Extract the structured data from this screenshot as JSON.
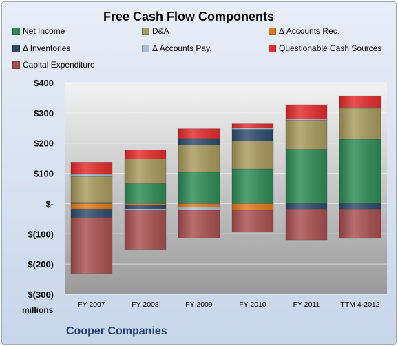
{
  "chart_data": {
    "type": "bar",
    "stacked": true,
    "title": "Free Cash Flow Components",
    "units_label": "millions",
    "company": "Cooper Companies",
    "categories": [
      "FY 2007",
      "FY 2008",
      "FY 2009",
      "FY 2010",
      "FY 2011",
      "TTM 4-2012"
    ],
    "ylim": [
      -300,
      400
    ],
    "yticks": [
      400,
      300,
      200,
      100,
      0,
      -100,
      -200,
      -300
    ],
    "ytick_labels": [
      "$400",
      "$300",
      "$200",
      "$100",
      "$-",
      "$(100)",
      "$(200)",
      "$(300)"
    ],
    "grid": true,
    "legend_position": "top",
    "series": [
      {
        "name": "Net Income",
        "color": "#2e8b57",
        "values": [
          4,
          66,
          104,
          115,
          180,
          213
        ]
      },
      {
        "name": "D&A",
        "color": "#a89a5e",
        "values": [
          85,
          82,
          90,
          93,
          96,
          103
        ]
      },
      {
        "name": "Δ Accounts Rec.",
        "color": "#e07a1a",
        "values": [
          -18,
          -5,
          -12,
          -22,
          0,
          0
        ]
      },
      {
        "name": "Δ Inventories",
        "color": "#2c4a6e",
        "values": [
          -28,
          -12,
          22,
          38,
          -18,
          -18
        ]
      },
      {
        "name": "Δ Accounts Pay.",
        "color": "#a9bfd6",
        "values": [
          8,
          -6,
          -10,
          6,
          4,
          3
        ]
      },
      {
        "name": "Questionable Cash Sources",
        "color": "#e52a2a",
        "values": [
          40,
          30,
          32,
          12,
          47,
          37
        ]
      },
      {
        "name": "Capital Expenditure",
        "color": "#a94f4f",
        "values": [
          -185,
          -128,
          -92,
          -72,
          -102,
          -97
        ]
      }
    ]
  }
}
